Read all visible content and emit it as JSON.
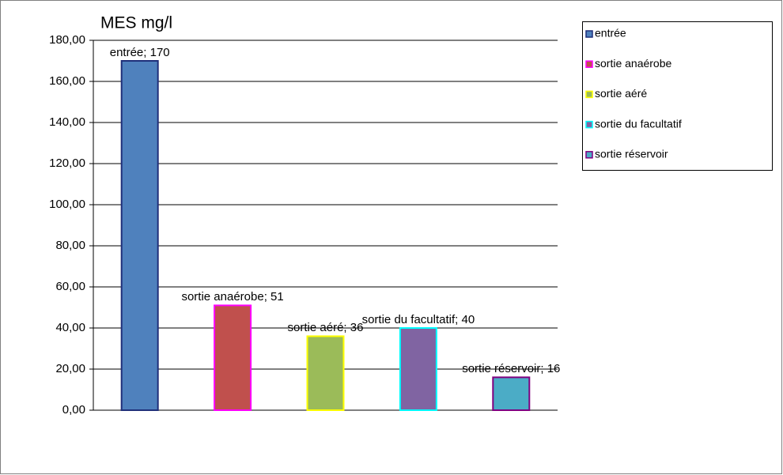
{
  "chart_data": {
    "type": "bar",
    "title": "MES mg/l",
    "categories": [
      "entrée",
      "sortie anaérobe",
      "sortie aéré",
      "sortie du facultatif",
      "sortie réservoir"
    ],
    "values": [
      170,
      51,
      36,
      40,
      16
    ],
    "value_labels": [
      "entrée; 170",
      "sortie anaérobe; 51",
      "sortie aéré; 36",
      "sortie du facultatif; 40",
      "sortie réservoir; 16"
    ],
    "colors": [
      "#4F81BD",
      "#C0504D",
      "#9BBB59",
      "#8064A2",
      "#4BACC6"
    ],
    "border_colors": [
      "#1F2F7A",
      "#FF00FF",
      "#FFFF00",
      "#00FFFF",
      "#800080"
    ],
    "ylim": [
      0,
      180
    ],
    "yticks": [
      {
        "value": 0,
        "label": "0,00"
      },
      {
        "value": 20,
        "label": "20,00"
      },
      {
        "value": 40,
        "label": "40,00"
      },
      {
        "value": 60,
        "label": "60,00"
      },
      {
        "value": 80,
        "label": "80,00"
      },
      {
        "value": 100,
        "label": "100,00"
      },
      {
        "value": 120,
        "label": "120,00"
      },
      {
        "value": 140,
        "label": "140,00"
      },
      {
        "value": 160,
        "label": "160,00"
      },
      {
        "value": 180,
        "label": "180,00"
      }
    ],
    "grid": true,
    "legend": "right"
  }
}
